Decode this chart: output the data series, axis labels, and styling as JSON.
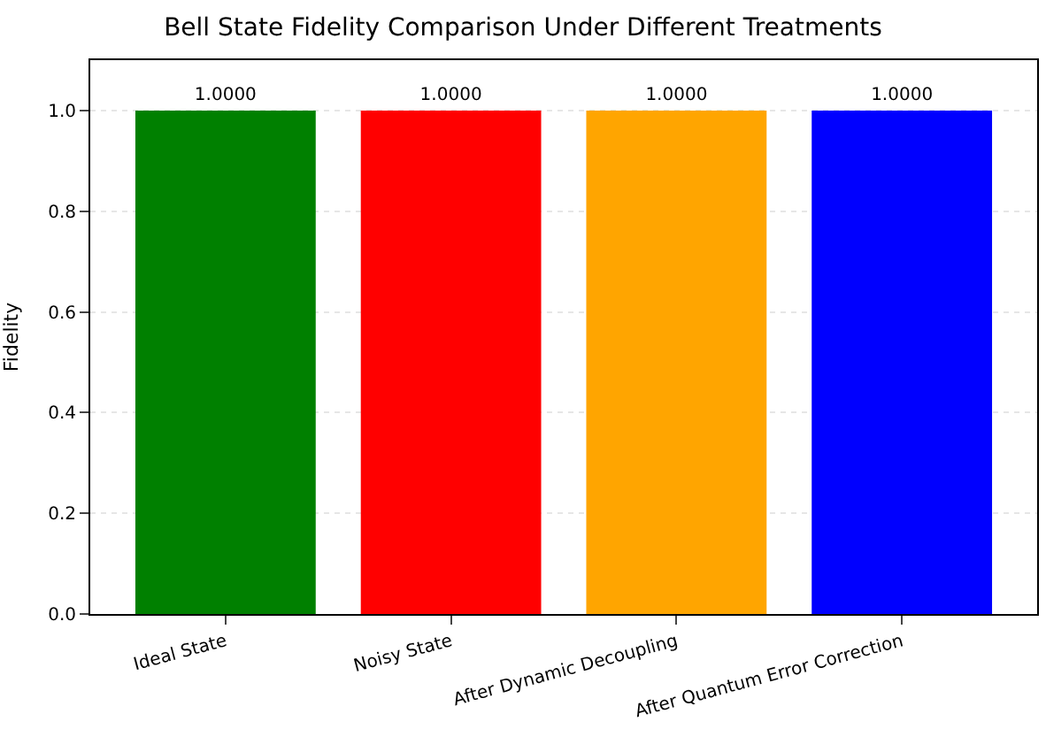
{
  "chart_data": {
    "type": "bar",
    "title": "Bell State Fidelity Comparison Under Different Treatments",
    "ylabel": "Fidelity",
    "categories": [
      "Ideal State",
      "Noisy State",
      "After Dynamic Decoupling",
      "After Quantum Error Correction"
    ],
    "values": [
      1.0,
      1.0,
      1.0,
      1.0
    ],
    "colors": [
      "#008000",
      "#ff0000",
      "#ffa500",
      "#0000ff"
    ],
    "value_labels": [
      "1.0000",
      "1.0000",
      "1.0000",
      "1.0000"
    ],
    "ylim": [
      0,
      1.1
    ],
    "yticks": [
      {
        "value": 0,
        "label": "0.0"
      },
      0.2,
      0.4,
      0.6,
      0.8,
      {
        "value": 1,
        "label": "1.0"
      }
    ],
    "grid": "y"
  }
}
